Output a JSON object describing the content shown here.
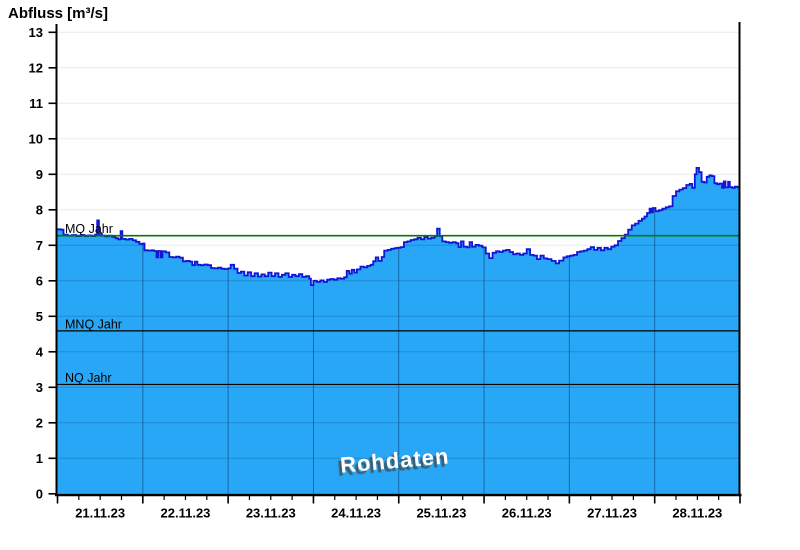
{
  "title": "Abfluss [m³/s]",
  "watermark": "Rohdaten",
  "colors": {
    "area_fill": "#29A7F7",
    "area_line": "#1414D8",
    "mq_line": "#007A00",
    "ref_line": "#000000",
    "gridline": "#ECECEC",
    "gridline_in_fill_v": "rgba(0,45,90,0.50)",
    "gridline_in_fill_h": "rgba(0,45,90,0.22)",
    "axis": "#000000",
    "text": "#000000",
    "watermark_fill": "#FFFFFF"
  },
  "chart_data": {
    "type": "area",
    "title": "Abfluss [m³/s]",
    "ylabel": "Abfluss [m³/s]",
    "xlabel": "",
    "ylim": [
      0,
      13.2
    ],
    "grid": true,
    "legend": "none",
    "watermark": "Rohdaten",
    "y_tick_labels": [
      0,
      1,
      2,
      3,
      4,
      5,
      6,
      7,
      8,
      9,
      10,
      11,
      12,
      13
    ],
    "x_categories": [
      "21.11.23",
      "22.11.23",
      "23.11.23",
      "24.11.23",
      "25.11.23",
      "26.11.23",
      "27.11.23",
      "28.11.23"
    ],
    "x_range_days": [
      0,
      8
    ],
    "x_minor_ticks_per_day": 4,
    "reference_lines": [
      {
        "label": "MQ Jahr",
        "value": 7.27,
        "color": "#007A00"
      },
      {
        "label": "MNQ Jahr",
        "value": 4.59,
        "color": "#000000"
      },
      {
        "label": "NQ Jahr",
        "value": 3.08,
        "color": "#000000"
      }
    ],
    "series": [
      {
        "name": "Abfluss Rohdaten",
        "unit": "m³/s",
        "points": [
          [
            0,
            7.45
          ],
          [
            0.04,
            7.44
          ],
          [
            0.07,
            7.3
          ],
          [
            0.12,
            7.27
          ],
          [
            0.17,
            7.29
          ],
          [
            0.22,
            7.26
          ],
          [
            0.27,
            7.29
          ],
          [
            0.32,
            7.26
          ],
          [
            0.36,
            7.28
          ],
          [
            0.4,
            7.26
          ],
          [
            0.44,
            7.3
          ],
          [
            0.465,
            7.7
          ],
          [
            0.485,
            7.32
          ],
          [
            0.52,
            7.27
          ],
          [
            0.56,
            7.25
          ],
          [
            0.6,
            7.27
          ],
          [
            0.64,
            7.24
          ],
          [
            0.68,
            7.2
          ],
          [
            0.71,
            7.17
          ],
          [
            0.74,
            7.4
          ],
          [
            0.76,
            7.18
          ],
          [
            0.8,
            7.16
          ],
          [
            0.84,
            7.18
          ],
          [
            0.88,
            7.14
          ],
          [
            0.92,
            7.1
          ],
          [
            0.96,
            7.04
          ],
          [
            1,
            7.05
          ],
          [
            1.02,
            6.86
          ],
          [
            1.06,
            6.85
          ],
          [
            1.1,
            6.86
          ],
          [
            1.13,
            6.84
          ],
          [
            1.16,
            6.66
          ],
          [
            1.18,
            6.84
          ],
          [
            1.21,
            6.66
          ],
          [
            1.23,
            6.83
          ],
          [
            1.27,
            6.8
          ],
          [
            1.31,
            6.67
          ],
          [
            1.35,
            6.66
          ],
          [
            1.39,
            6.68
          ],
          [
            1.43,
            6.65
          ],
          [
            1.47,
            6.55
          ],
          [
            1.51,
            6.56
          ],
          [
            1.55,
            6.54
          ],
          [
            1.58,
            6.44
          ],
          [
            1.61,
            6.54
          ],
          [
            1.64,
            6.45
          ],
          [
            1.68,
            6.44
          ],
          [
            1.72,
            6.46
          ],
          [
            1.76,
            6.44
          ],
          [
            1.8,
            6.36
          ],
          [
            1.84,
            6.35
          ],
          [
            1.88,
            6.37
          ],
          [
            1.92,
            6.34
          ],
          [
            1.96,
            6.33
          ],
          [
            2,
            6.35
          ],
          [
            2.03,
            6.45
          ],
          [
            2.07,
            6.34
          ],
          [
            2.11,
            6.22
          ],
          [
            2.15,
            6.26
          ],
          [
            2.19,
            6.15
          ],
          [
            2.23,
            6.24
          ],
          [
            2.27,
            6.13
          ],
          [
            2.31,
            6.21
          ],
          [
            2.35,
            6.12
          ],
          [
            2.39,
            6.18
          ],
          [
            2.43,
            6.13
          ],
          [
            2.47,
            6.23
          ],
          [
            2.51,
            6.13
          ],
          [
            2.55,
            6.21
          ],
          [
            2.59,
            6.11
          ],
          [
            2.63,
            6.17
          ],
          [
            2.67,
            6.21
          ],
          [
            2.71,
            6.11
          ],
          [
            2.75,
            6.17
          ],
          [
            2.79,
            6.13
          ],
          [
            2.83,
            6.19
          ],
          [
            2.87,
            6.11
          ],
          [
            2.91,
            6.13
          ],
          [
            2.95,
            6.06
          ],
          [
            2.97,
            5.88
          ],
          [
            3,
            6
          ],
          [
            3.04,
            5.97
          ],
          [
            3.08,
            6.01
          ],
          [
            3.12,
            5.97
          ],
          [
            3.16,
            6.03
          ],
          [
            3.2,
            6.05
          ],
          [
            3.24,
            6.03
          ],
          [
            3.28,
            6.07
          ],
          [
            3.32,
            6.06
          ],
          [
            3.36,
            6.1
          ],
          [
            3.39,
            6.28
          ],
          [
            3.42,
            6.2
          ],
          [
            3.45,
            6.31
          ],
          [
            3.48,
            6.23
          ],
          [
            3.51,
            6.32
          ],
          [
            3.55,
            6.4
          ],
          [
            3.59,
            6.38
          ],
          [
            3.63,
            6.42
          ],
          [
            3.67,
            6.45
          ],
          [
            3.7,
            6.55
          ],
          [
            3.73,
            6.66
          ],
          [
            3.76,
            6.56
          ],
          [
            3.8,
            6.67
          ],
          [
            3.83,
            6.85
          ],
          [
            3.87,
            6.87
          ],
          [
            3.91,
            6.9
          ],
          [
            3.95,
            6.92
          ],
          [
            3.98,
            6.93
          ],
          [
            4.02,
            6.95
          ],
          [
            4.06,
            7.09
          ],
          [
            4.1,
            7.11
          ],
          [
            4.14,
            7.15
          ],
          [
            4.18,
            7.17
          ],
          [
            4.22,
            7.21
          ],
          [
            4.26,
            7.17
          ],
          [
            4.3,
            7.23
          ],
          [
            4.34,
            7.19
          ],
          [
            4.38,
            7.21
          ],
          [
            4.42,
            7.26
          ],
          [
            4.45,
            7.47
          ],
          [
            4.48,
            7.26
          ],
          [
            4.51,
            7.11
          ],
          [
            4.55,
            7.09
          ],
          [
            4.59,
            7.07
          ],
          [
            4.63,
            7.09
          ],
          [
            4.67,
            7.06
          ],
          [
            4.7,
            6.95
          ],
          [
            4.73,
            7.11
          ],
          [
            4.76,
            6.96
          ],
          [
            4.8,
            6.94
          ],
          [
            4.83,
            7.09
          ],
          [
            4.86,
            6.96
          ],
          [
            4.9,
            7.01
          ],
          [
            4.94,
            6.99
          ],
          [
            4.98,
            6.94
          ],
          [
            5.02,
            6.77
          ],
          [
            5.06,
            6.64
          ],
          [
            5.1,
            6.79
          ],
          [
            5.14,
            6.83
          ],
          [
            5.18,
            6.81
          ],
          [
            5.22,
            6.85
          ],
          [
            5.26,
            6.87
          ],
          [
            5.3,
            6.81
          ],
          [
            5.34,
            6.75
          ],
          [
            5.38,
            6.77
          ],
          [
            5.42,
            6.73
          ],
          [
            5.46,
            6.77
          ],
          [
            5.5,
            6.89
          ],
          [
            5.54,
            6.73
          ],
          [
            5.58,
            6.71
          ],
          [
            5.62,
            6.61
          ],
          [
            5.66,
            6.71
          ],
          [
            5.7,
            6.63
          ],
          [
            5.74,
            6.61
          ],
          [
            5.79,
            6.56
          ],
          [
            5.84,
            6.49
          ],
          [
            5.88,
            6.57
          ],
          [
            5.93,
            6.66
          ],
          [
            5.97,
            6.69
          ],
          [
            6.01,
            6.71
          ],
          [
            6.05,
            6.73
          ],
          [
            6.09,
            6.81
          ],
          [
            6.13,
            6.83
          ],
          [
            6.17,
            6.85
          ],
          [
            6.21,
            6.89
          ],
          [
            6.25,
            6.95
          ],
          [
            6.29,
            6.87
          ],
          [
            6.33,
            6.93
          ],
          [
            6.37,
            6.86
          ],
          [
            6.41,
            6.93
          ],
          [
            6.45,
            6.89
          ],
          [
            6.49,
            6.96
          ],
          [
            6.53,
            7
          ],
          [
            6.57,
            7.12
          ],
          [
            6.61,
            7.2
          ],
          [
            6.65,
            7.3
          ],
          [
            6.69,
            7.44
          ],
          [
            6.73,
            7.56
          ],
          [
            6.77,
            7.61
          ],
          [
            6.81,
            7.69
          ],
          [
            6.85,
            7.75
          ],
          [
            6.88,
            7.81
          ],
          [
            6.91,
            7.91
          ],
          [
            6.94,
            8.03
          ],
          [
            6.96,
            7.93
          ],
          [
            6.98,
            8.05
          ],
          [
            7.01,
            7.96
          ],
          [
            7.05,
            7.99
          ],
          [
            7.09,
            8.03
          ],
          [
            7.13,
            8.07
          ],
          [
            7.17,
            8.1
          ],
          [
            7.21,
            8.39
          ],
          [
            7.25,
            8.52
          ],
          [
            7.29,
            8.57
          ],
          [
            7.33,
            8.61
          ],
          [
            7.37,
            8.7
          ],
          [
            7.41,
            8.73
          ],
          [
            7.44,
            8.62
          ],
          [
            7.47,
            9
          ],
          [
            7.49,
            9.18
          ],
          [
            7.52,
            9.06
          ],
          [
            7.55,
            8.79
          ],
          [
            7.58,
            8.77
          ],
          [
            7.61,
            8.93
          ],
          [
            7.64,
            8.97
          ],
          [
            7.67,
            8.95
          ],
          [
            7.7,
            8.75
          ],
          [
            7.73,
            8.72
          ],
          [
            7.76,
            8.74
          ],
          [
            7.79,
            8.62
          ],
          [
            7.81,
            8.8
          ],
          [
            7.83,
            8.63
          ],
          [
            7.86,
            8.79
          ],
          [
            7.88,
            8.64
          ],
          [
            7.91,
            8.62
          ],
          [
            7.94,
            8.65
          ],
          [
            7.97,
            8.63
          ],
          [
            8,
            8.63
          ]
        ]
      }
    ]
  }
}
